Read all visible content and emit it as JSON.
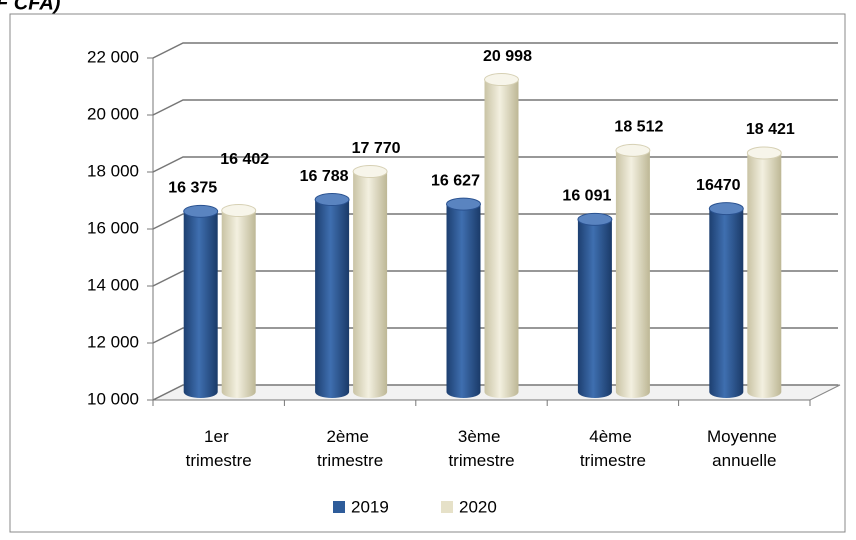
{
  "chart_data": {
    "type": "bar3d",
    "title": "F CFA)",
    "categories": [
      "1er trimestre",
      "2ème trimestre",
      "3ème trimestre",
      "4ème trimestre",
      "Moyenne annuelle"
    ],
    "series": [
      {
        "name": "2019",
        "color": "#2e5c9a",
        "values": [
          16375,
          16788,
          16627,
          16091,
          16470
        ],
        "value_labels": [
          "16 375",
          "16 788",
          "16 627",
          "16 091",
          "16470"
        ]
      },
      {
        "name": "2020",
        "color": "#e6e1c8",
        "values": [
          16402,
          17770,
          20998,
          18512,
          18421
        ],
        "value_labels": [
          "16 402",
          "17 770",
          "20 998",
          "18 512",
          "18 421"
        ]
      }
    ],
    "ylim": [
      10000,
      22000
    ],
    "yticks": [
      {
        "value": 10000,
        "label": "10 000"
      },
      {
        "value": 12000,
        "label": "12 000"
      },
      {
        "value": 14000,
        "label": "14 000"
      },
      {
        "value": 16000,
        "label": "16 000"
      },
      {
        "value": 18000,
        "label": "18 000"
      },
      {
        "value": 20000,
        "label": "20 000"
      },
      {
        "value": 22000,
        "label": "22 000"
      }
    ],
    "grid": true,
    "legend": "bottom"
  }
}
